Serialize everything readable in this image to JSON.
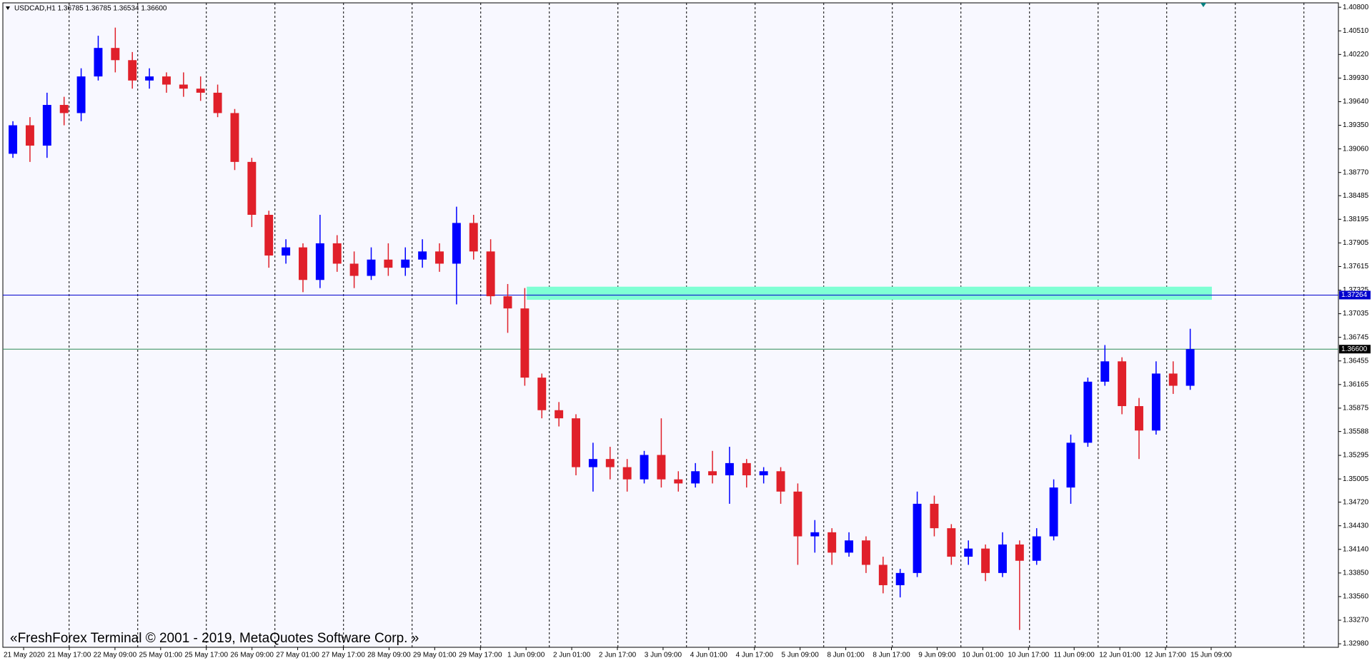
{
  "chart_data": {
    "type": "candlestick",
    "title": "USDCAD,H1  1.36785 1.36785 1.36534 1.36600",
    "watermark": "«FreshForex Terminal © 2001 - 2019, MetaQuotes Software Corp. »",
    "up_color": "#0000ff",
    "down_color": "#e0202a",
    "grid": true,
    "ylim": [
      1.32937,
      1.40854
    ],
    "yticks": [
      {
        "value": 1.408,
        "label": "1.40800"
      },
      {
        "value": 1.4051,
        "label": "1.40510"
      },
      {
        "value": 1.4022,
        "label": "1.40220"
      },
      {
        "value": 1.3993,
        "label": "1.39930"
      },
      {
        "value": 1.3964,
        "label": "1.39640"
      },
      {
        "value": 1.3935,
        "label": "1.39350"
      },
      {
        "value": 1.3906,
        "label": "1.39060"
      },
      {
        "value": 1.3877,
        "label": "1.38770"
      },
      {
        "value": 1.38485,
        "label": "1.38485"
      },
      {
        "value": 1.38195,
        "label": "1.38195"
      },
      {
        "value": 1.37905,
        "label": "1.37905"
      },
      {
        "value": 1.37615,
        "label": "1.37615"
      },
      {
        "value": 1.37325,
        "label": "1.37325"
      },
      {
        "value": 1.37035,
        "label": "1.37035"
      },
      {
        "value": 1.36745,
        "label": "1.36745"
      },
      {
        "value": 1.36455,
        "label": "1.36455"
      },
      {
        "value": 1.36165,
        "label": "1.36165"
      },
      {
        "value": 1.35875,
        "label": "1.35875"
      },
      {
        "value": 1.35588,
        "label": "1.35588"
      },
      {
        "value": 1.35295,
        "label": "1.35295"
      },
      {
        "value": 1.35005,
        "label": "1.35005"
      },
      {
        "value": 1.3472,
        "label": "1.34720"
      },
      {
        "value": 1.3443,
        "label": "1.34430"
      },
      {
        "value": 1.3414,
        "label": "1.34140"
      },
      {
        "value": 1.3385,
        "label": "1.33850"
      },
      {
        "value": 1.3356,
        "label": "1.33560"
      },
      {
        "value": 1.3327,
        "label": "1.33270"
      },
      {
        "value": 1.3298,
        "label": "1.32980"
      }
    ],
    "x_labels": [
      "21 May 2020",
      "21 May 17:00",
      "22 May 09:00",
      "25 May 01:00",
      "25 May 17:00",
      "26 May 09:00",
      "27 May 01:00",
      "27 May 17:00",
      "28 May 09:00",
      "29 May 01:00",
      "29 May 17:00",
      "1 Jun 09:00",
      "2 Jun 01:00",
      "2 Jun 17:00",
      "3 Jun 09:00",
      "4 Jun 01:00",
      "4 Jun 17:00",
      "5 Jun 09:00",
      "8 Jun 01:00",
      "8 Jun 17:00",
      "9 Jun 09:00",
      "10 Jun 01:00",
      "10 Jun 17:00",
      "11 Jun 09:00",
      "12 Jun 01:00",
      "12 Jun 17:00",
      "15 Jun 09:00"
    ],
    "levels": [
      {
        "value": 1.37264,
        "label": "1.37264",
        "color": "#0000cd"
      },
      {
        "value": 1.366,
        "label": "1.36600",
        "color": "#2e8b57"
      }
    ],
    "zone": {
      "from": 1.37206,
      "to": 1.37367,
      "color": "#7fffd4"
    },
    "open": [
      1.39,
      1.3935,
      1.391,
      1.396,
      1.395,
      1.3995,
      1.403,
      1.4015,
      1.399,
      1.3995,
      1.3985,
      1.398,
      1.3975,
      1.395,
      1.389,
      1.3825,
      1.3775,
      1.3785,
      1.3745,
      1.379,
      1.3765,
      1.375,
      1.377,
      1.376,
      1.377,
      1.378,
      1.3765,
      1.3815,
      1.378,
      1.3725,
      1.371,
      1.3625,
      1.3585,
      1.3575,
      1.3515,
      1.3525,
      1.3515,
      1.35,
      1.353,
      1.35,
      1.3495,
      1.351,
      1.3505,
      1.352,
      1.3505,
      1.351,
      1.3485,
      1.343,
      1.3435,
      1.341,
      1.3425,
      1.3395,
      1.337,
      1.3385,
      1.347,
      1.344,
      1.3405,
      1.3415,
      1.3385,
      1.342,
      1.34,
      1.343,
      1.349,
      1.3545,
      1.362,
      1.3645,
      1.359,
      1.356,
      1.363,
      1.3615
    ],
    "high": [
      1.394,
      1.3945,
      1.3975,
      1.397,
      1.4005,
      1.4045,
      1.4055,
      1.4025,
      1.4005,
      1.4,
      1.4,
      1.3995,
      1.3985,
      1.3955,
      1.3895,
      1.383,
      1.3795,
      1.379,
      1.3825,
      1.38,
      1.378,
      1.3785,
      1.379,
      1.3785,
      1.3795,
      1.379,
      1.3835,
      1.3825,
      1.3795,
      1.374,
      1.3735,
      1.363,
      1.3595,
      1.358,
      1.3545,
      1.354,
      1.3525,
      1.3535,
      1.3575,
      1.351,
      1.352,
      1.3535,
      1.354,
      1.3525,
      1.3515,
      1.3515,
      1.3495,
      1.345,
      1.344,
      1.3435,
      1.343,
      1.3405,
      1.339,
      1.3485,
      1.348,
      1.3445,
      1.3425,
      1.342,
      1.3435,
      1.3425,
      1.344,
      1.35,
      1.3555,
      1.3625,
      1.3665,
      1.365,
      1.36,
      1.3645,
      1.3645,
      1.3685
    ],
    "low": [
      1.3895,
      1.389,
      1.3895,
      1.3935,
      1.394,
      1.399,
      1.4,
      1.398,
      1.398,
      1.3975,
      1.397,
      1.3965,
      1.3945,
      1.388,
      1.381,
      1.376,
      1.3765,
      1.373,
      1.3735,
      1.3755,
      1.3735,
      1.3745,
      1.375,
      1.375,
      1.376,
      1.3755,
      1.3715,
      1.377,
      1.3715,
      1.368,
      1.3615,
      1.3575,
      1.3565,
      1.3505,
      1.3485,
      1.35,
      1.3485,
      1.3495,
      1.349,
      1.3485,
      1.349,
      1.3495,
      1.347,
      1.349,
      1.3495,
      1.347,
      1.3395,
      1.341,
      1.3395,
      1.3405,
      1.3385,
      1.336,
      1.3355,
      1.338,
      1.343,
      1.3395,
      1.3395,
      1.3375,
      1.338,
      1.3315,
      1.3395,
      1.3425,
      1.347,
      1.354,
      1.3615,
      1.358,
      1.3525,
      1.3555,
      1.3605,
      1.361
    ],
    "close": [
      1.3935,
      1.391,
      1.396,
      1.395,
      1.3995,
      1.403,
      1.4015,
      1.399,
      1.3995,
      1.3985,
      1.398,
      1.3975,
      1.395,
      1.389,
      1.3825,
      1.3775,
      1.3785,
      1.3745,
      1.379,
      1.3765,
      1.375,
      1.377,
      1.376,
      1.377,
      1.378,
      1.3765,
      1.3815,
      1.378,
      1.3725,
      1.371,
      1.3625,
      1.3585,
      1.3575,
      1.3515,
      1.3525,
      1.3515,
      1.35,
      1.353,
      1.35,
      1.3495,
      1.351,
      1.3505,
      1.352,
      1.3505,
      1.351,
      1.3485,
      1.343,
      1.3435,
      1.341,
      1.3425,
      1.3395,
      1.337,
      1.3385,
      1.347,
      1.344,
      1.3405,
      1.3415,
      1.3385,
      1.342,
      1.34,
      1.343,
      1.349,
      1.3545,
      1.362,
      1.3645,
      1.359,
      1.356,
      1.363,
      1.3615,
      1.366
    ]
  }
}
